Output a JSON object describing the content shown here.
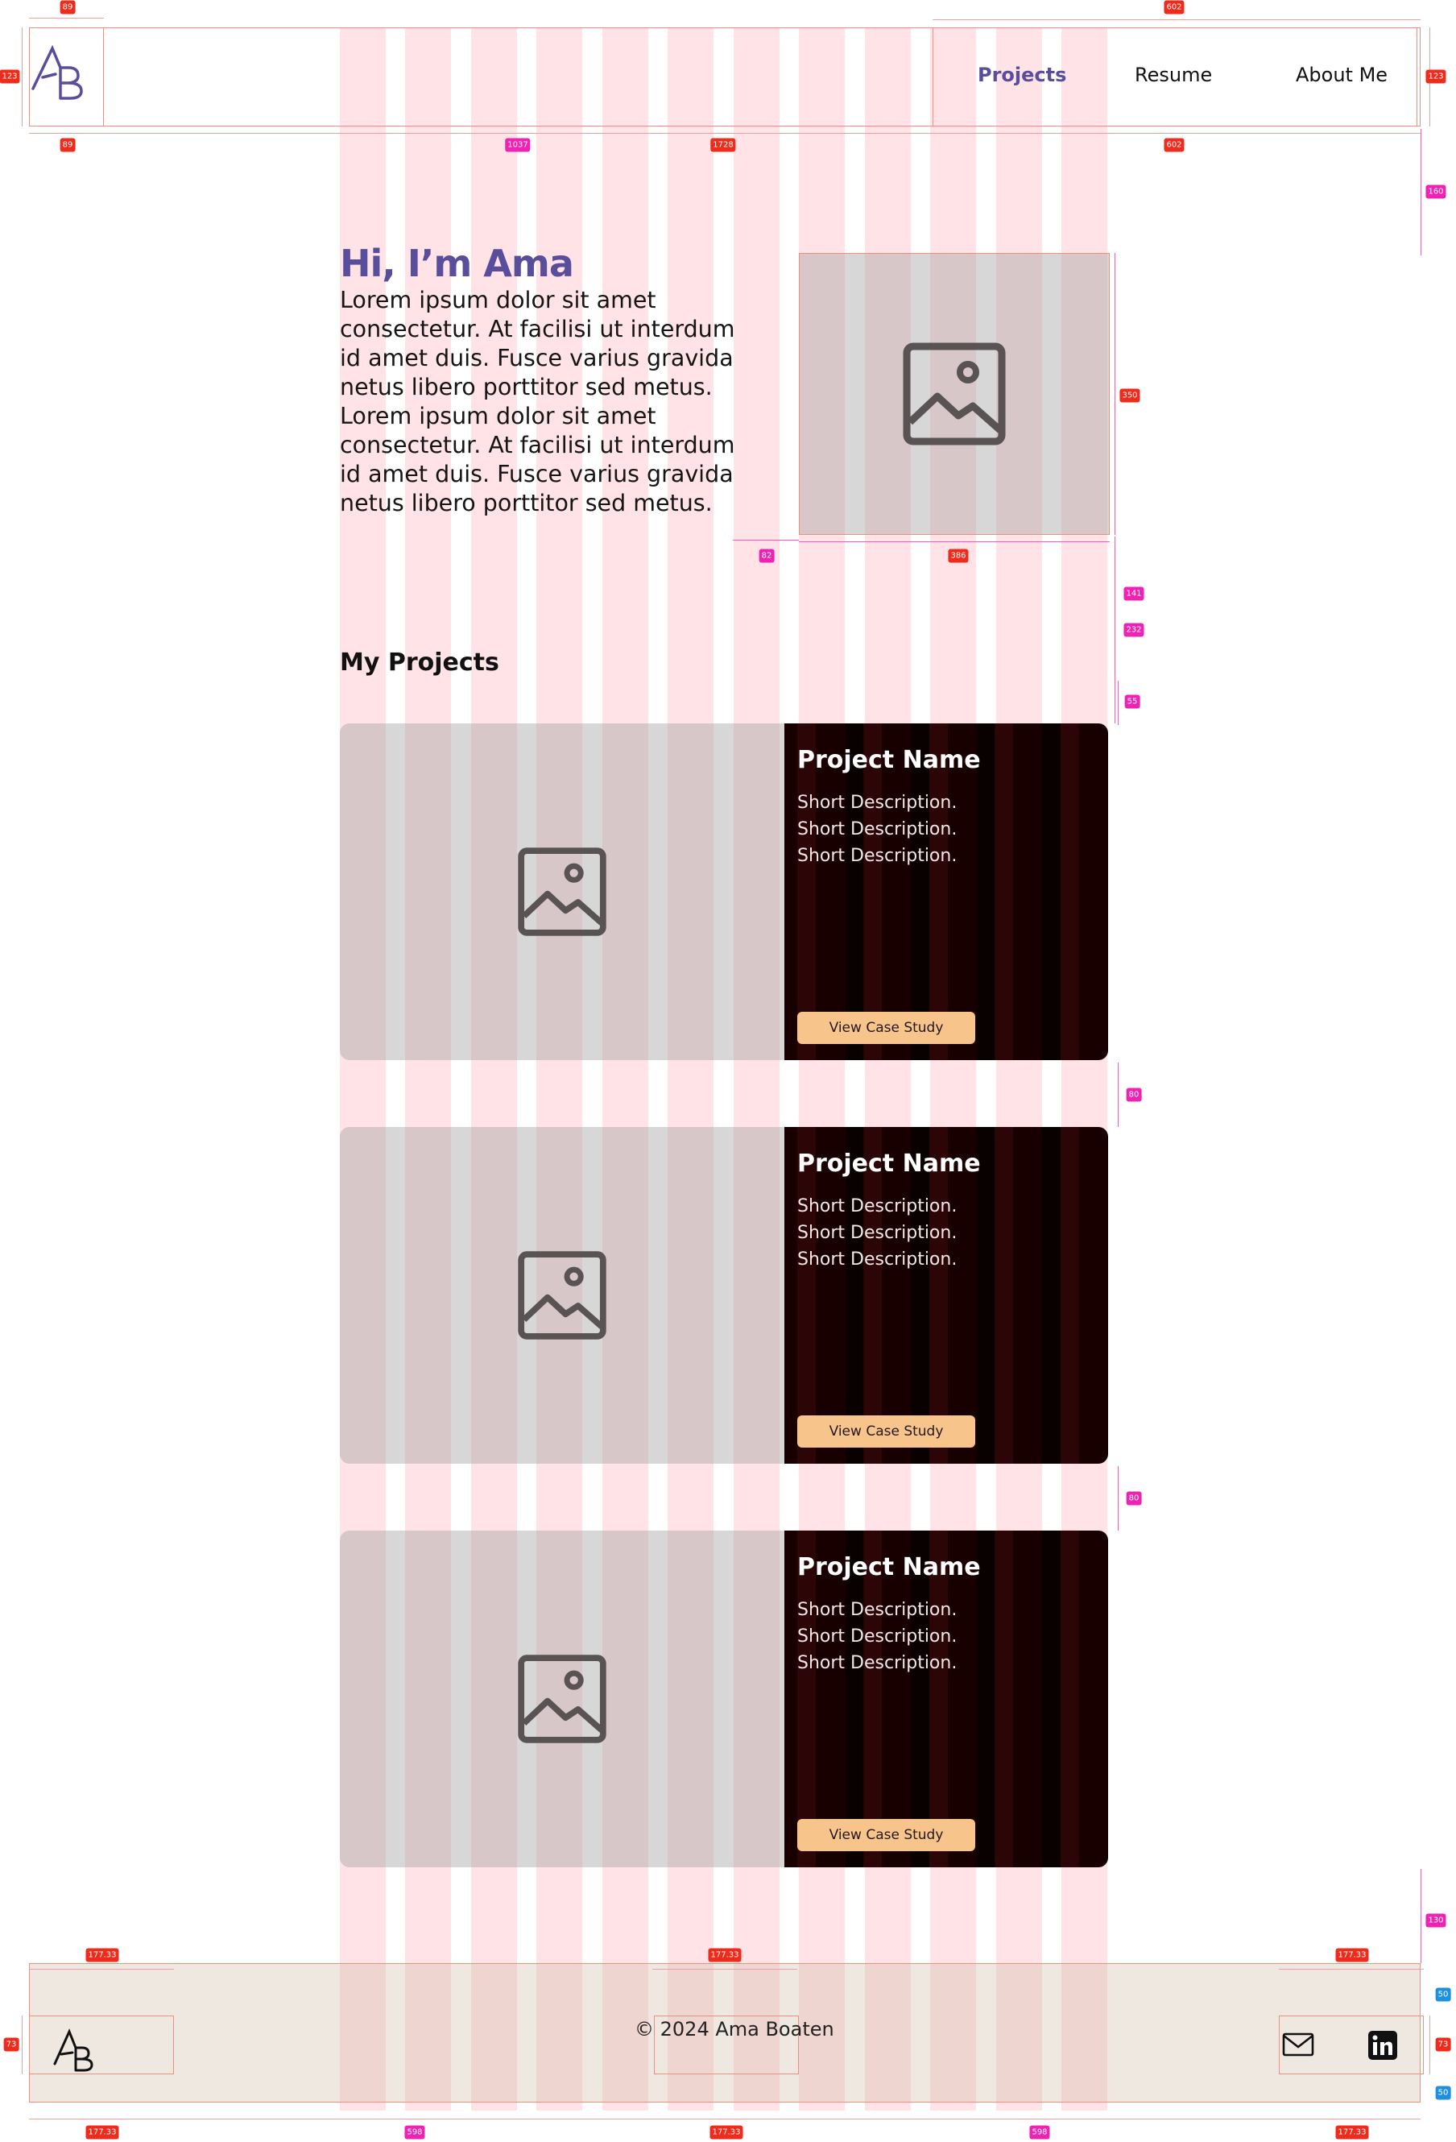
{
  "header": {
    "logo_text": "AB",
    "nav": [
      {
        "label": "Projects",
        "active": true
      },
      {
        "label": "Resume",
        "active": false
      },
      {
        "label": "About Me",
        "active": false
      }
    ]
  },
  "hero": {
    "title": "Hi, I’m Ama",
    "body": "Lorem ipsum dolor sit amet consectetur. At facilisi ut interdum id amet duis. Fusce varius gravida netus libero porttitor sed metus. Lorem ipsum dolor sit amet consectetur. At facilisi ut interdum id amet duis. Fusce varius gravida netus libero porttitor sed metus.",
    "image_icon": "image-placeholder-icon"
  },
  "projects": {
    "section_title": "My Projects",
    "items": [
      {
        "name": "Project Name",
        "lines": [
          "Short Description.",
          "Short Description.",
          "Short Description."
        ],
        "button": "View Case Study"
      },
      {
        "name": "Project Name",
        "lines": [
          "Short Description.",
          "Short Description.",
          "Short Description."
        ],
        "button": "View Case Study"
      },
      {
        "name": "Project Name",
        "lines": [
          "Short Description.",
          "Short Description.",
          "Short Description."
        ],
        "button": "View Case Study"
      }
    ]
  },
  "footer": {
    "copyright": "© 2024 Ama Boaten",
    "icons": [
      "mail-icon",
      "linkedin-icon"
    ]
  },
  "annotations": {
    "header_logo_width": "89",
    "header_logo_height": "123",
    "header_content_width": "1037",
    "header_total_width": "1728",
    "nav_width": "602",
    "header_right_height": "123",
    "hero_gap_top": "160",
    "hero_image_height": "350",
    "hero_gap_left": "82",
    "hero_image_width": "386",
    "hero_gap_bottom": "141",
    "section_gap": "232",
    "title_gap": "55",
    "card_gap_1": "80",
    "card_gap_2": "80",
    "footer_gap_top": "130",
    "footer_col_width": "177.33",
    "footer_spacing": "598",
    "footer_height": "73",
    "footer_pad": "50"
  },
  "colors": {
    "accent": "#594e9b",
    "card_dark": "#180000",
    "button": "#f7c48c",
    "footer_bg": "#ede6dd"
  }
}
